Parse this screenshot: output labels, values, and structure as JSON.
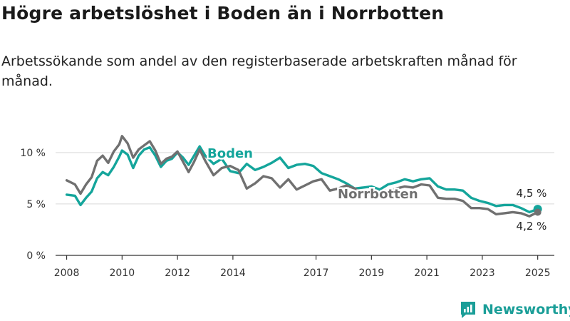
{
  "title": "Högre arbetslöshet i Boden än i Norrbotten",
  "subtitle": "Arbetssökande som andel av den registerbaserade arbetskraften månad för månad.",
  "brand": {
    "name": "Newsworthy",
    "icon": "newsworthy-logo-icon"
  },
  "colors": {
    "boden": "#14a59b",
    "norrbotten": "#707070",
    "grid": "#d9d9d9",
    "axis": "#333333"
  },
  "chart_data": {
    "type": "line",
    "title": "Högre arbetslöshet i Boden än i Norrbotten",
    "ylabel": "",
    "xlabel": "",
    "ylim": [
      0,
      12
    ],
    "xlim": [
      2007.6,
      2025.6
    ],
    "yticks": [
      0,
      5,
      10
    ],
    "ytick_labels": [
      "0 %",
      "5 %",
      "10 %"
    ],
    "xticks": [
      2008,
      2010,
      2012,
      2014,
      2017,
      2019,
      2021,
      2023,
      2025
    ],
    "xtick_labels": [
      "2008",
      "2010",
      "2012",
      "2014",
      "2017",
      "2019",
      "2021",
      "2023",
      "2025"
    ],
    "series": [
      {
        "name": "Boden",
        "x": [
          2008.0,
          2008.3,
          2008.5,
          2008.7,
          2008.9,
          2009.1,
          2009.3,
          2009.5,
          2009.7,
          2009.9,
          2010.0,
          2010.2,
          2010.4,
          2010.6,
          2010.8,
          2011.0,
          2011.2,
          2011.4,
          2011.6,
          2011.8,
          2012.0,
          2012.2,
          2012.4,
          2012.6,
          2012.8,
          2013.0,
          2013.3,
          2013.6,
          2013.9,
          2014.2,
          2014.5,
          2014.8,
          2015.1,
          2015.4,
          2015.7,
          2016.0,
          2016.3,
          2016.6,
          2016.9,
          2017.2,
          2017.5,
          2017.8,
          2018.1,
          2018.4,
          2018.7,
          2019.0,
          2019.3,
          2019.6,
          2019.9,
          2020.2,
          2020.5,
          2020.8,
          2021.1,
          2021.4,
          2021.7,
          2022.0,
          2022.3,
          2022.6,
          2022.9,
          2023.2,
          2023.5,
          2023.8,
          2024.1,
          2024.4,
          2024.7,
          2025.0
        ],
        "values": [
          5.9,
          5.8,
          4.9,
          5.6,
          6.2,
          7.5,
          8.1,
          7.8,
          8.6,
          9.6,
          10.2,
          9.8,
          8.5,
          9.7,
          10.3,
          10.5,
          9.7,
          8.6,
          9.2,
          9.4,
          10.0,
          9.5,
          8.8,
          9.7,
          10.6,
          9.7,
          8.9,
          9.4,
          8.2,
          8.0,
          8.9,
          8.3,
          8.6,
          9.0,
          9.5,
          8.5,
          8.8,
          8.9,
          8.7,
          8.0,
          7.7,
          7.4,
          7.0,
          6.5,
          6.6,
          6.7,
          6.4,
          6.9,
          7.1,
          7.4,
          7.2,
          7.4,
          7.5,
          6.7,
          6.4,
          6.4,
          6.3,
          5.6,
          5.3,
          5.1,
          4.8,
          4.9,
          4.9,
          4.6,
          4.2,
          4.5
        ]
      },
      {
        "name": "Norrbotten",
        "x": [
          2008.0,
          2008.3,
          2008.5,
          2008.7,
          2008.9,
          2009.1,
          2009.3,
          2009.5,
          2009.7,
          2009.9,
          2010.0,
          2010.2,
          2010.4,
          2010.6,
          2010.8,
          2011.0,
          2011.2,
          2011.4,
          2011.6,
          2011.8,
          2012.0,
          2012.2,
          2012.4,
          2012.6,
          2012.8,
          2013.0,
          2013.3,
          2013.6,
          2013.9,
          2014.2,
          2014.5,
          2014.8,
          2015.1,
          2015.4,
          2015.7,
          2016.0,
          2016.3,
          2016.6,
          2016.9,
          2017.2,
          2017.5,
          2017.8,
          2018.1,
          2018.4,
          2018.7,
          2019.0,
          2019.3,
          2019.6,
          2019.9,
          2020.2,
          2020.5,
          2020.8,
          2021.1,
          2021.4,
          2021.7,
          2022.0,
          2022.3,
          2022.6,
          2022.9,
          2023.2,
          2023.5,
          2023.8,
          2024.1,
          2024.4,
          2024.7,
          2025.0
        ],
        "values": [
          7.3,
          6.9,
          6.0,
          6.9,
          7.6,
          9.2,
          9.7,
          9.0,
          10.1,
          10.8,
          11.6,
          10.9,
          9.5,
          10.3,
          10.7,
          11.1,
          10.2,
          8.9,
          9.4,
          9.6,
          10.1,
          9.1,
          8.1,
          9.1,
          10.3,
          9.2,
          7.8,
          8.5,
          8.7,
          8.3,
          6.5,
          7.0,
          7.7,
          7.5,
          6.6,
          7.4,
          6.4,
          6.8,
          7.2,
          7.4,
          6.3,
          6.5,
          6.8,
          6.5,
          6.0,
          6.0,
          6.2,
          6.3,
          6.5,
          6.7,
          6.6,
          6.9,
          6.8,
          5.6,
          5.5,
          5.5,
          5.3,
          4.6,
          4.6,
          4.5,
          4.0,
          4.1,
          4.2,
          4.1,
          3.8,
          4.2
        ]
      }
    ],
    "series_labels": [
      "Boden",
      "Norrbotten"
    ],
    "end_labels": [
      "4,5 %",
      "4,2 %"
    ]
  }
}
